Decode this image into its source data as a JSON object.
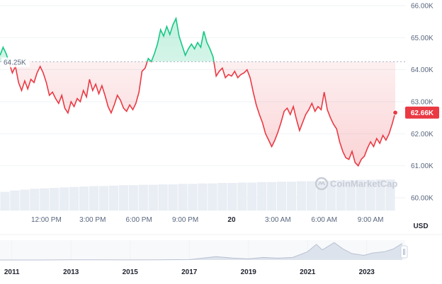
{
  "chart_data": {
    "type": "line",
    "unit": "USD",
    "watermark": "CoinMarketCap",
    "reference_price_label": "64.25K",
    "reference_price": 64.25,
    "current_price_label": "62.66K",
    "current_price": 62.66,
    "y_ticks": [
      "66.00K",
      "65.00K",
      "64.00K",
      "63.00K",
      "62.00K",
      "61.00K",
      "60.00K"
    ],
    "y_tick_values": [
      66,
      65,
      64,
      63,
      62,
      61,
      60
    ],
    "ylim": [
      60.0,
      66.0
    ],
    "x_ticks": [
      "12:00 PM",
      "3:00 PM",
      "6:00 PM",
      "9:00 PM",
      "20",
      "3:00 AM",
      "6:00 AM",
      "9:00 AM"
    ],
    "x_tick_hours": [
      12,
      15,
      18,
      21,
      24,
      27,
      30,
      33
    ],
    "x_bold_tick": "20",
    "price_series": [
      [
        9.0,
        64.45
      ],
      [
        9.2,
        64.7
      ],
      [
        9.4,
        64.5
      ],
      [
        9.6,
        64.2
      ],
      [
        9.8,
        63.9
      ],
      [
        10.0,
        64.1
      ],
      [
        10.2,
        63.6
      ],
      [
        10.4,
        63.35
      ],
      [
        10.6,
        63.65
      ],
      [
        10.8,
        63.4
      ],
      [
        11.0,
        63.7
      ],
      [
        11.2,
        63.6
      ],
      [
        11.4,
        63.9
      ],
      [
        11.6,
        64.1
      ],
      [
        11.8,
        63.9
      ],
      [
        12.0,
        63.6
      ],
      [
        12.2,
        63.2
      ],
      [
        12.4,
        63.3
      ],
      [
        12.6,
        63.1
      ],
      [
        12.8,
        62.95
      ],
      [
        13.0,
        63.2
      ],
      [
        13.2,
        62.8
      ],
      [
        13.4,
        62.65
      ],
      [
        13.6,
        63.0
      ],
      [
        13.8,
        62.85
      ],
      [
        14.0,
        63.1
      ],
      [
        14.2,
        63.0
      ],
      [
        14.4,
        63.35
      ],
      [
        14.6,
        63.15
      ],
      [
        14.8,
        63.7
      ],
      [
        15.0,
        63.35
      ],
      [
        15.2,
        63.55
      ],
      [
        15.4,
        63.25
      ],
      [
        15.6,
        63.5
      ],
      [
        15.8,
        63.2
      ],
      [
        16.0,
        62.85
      ],
      [
        16.2,
        62.65
      ],
      [
        16.4,
        62.9
      ],
      [
        16.6,
        63.2
      ],
      [
        16.8,
        63.05
      ],
      [
        17.0,
        62.8
      ],
      [
        17.2,
        62.7
      ],
      [
        17.4,
        62.9
      ],
      [
        17.6,
        62.75
      ],
      [
        17.8,
        62.95
      ],
      [
        18.0,
        63.3
      ],
      [
        18.2,
        63.95
      ],
      [
        18.4,
        64.05
      ],
      [
        18.6,
        64.35
      ],
      [
        18.8,
        64.25
      ],
      [
        19.0,
        64.5
      ],
      [
        19.2,
        64.8
      ],
      [
        19.4,
        65.25
      ],
      [
        19.6,
        65.05
      ],
      [
        19.8,
        65.35
      ],
      [
        20.0,
        65.1
      ],
      [
        20.2,
        65.4
      ],
      [
        20.4,
        65.6
      ],
      [
        20.6,
        65.05
      ],
      [
        20.8,
        64.75
      ],
      [
        21.0,
        64.45
      ],
      [
        21.2,
        64.65
      ],
      [
        21.4,
        64.8
      ],
      [
        21.6,
        64.65
      ],
      [
        21.8,
        64.85
      ],
      [
        22.0,
        64.7
      ],
      [
        22.2,
        65.2
      ],
      [
        22.4,
        64.85
      ],
      [
        22.6,
        64.65
      ],
      [
        22.8,
        64.4
      ],
      [
        23.0,
        63.8
      ],
      [
        23.2,
        63.95
      ],
      [
        23.4,
        64.05
      ],
      [
        23.6,
        63.75
      ],
      [
        23.8,
        63.85
      ],
      [
        24.0,
        63.8
      ],
      [
        24.2,
        63.95
      ],
      [
        24.4,
        63.75
      ],
      [
        24.6,
        63.85
      ],
      [
        24.8,
        63.9
      ],
      [
        25.0,
        64.0
      ],
      [
        25.2,
        63.75
      ],
      [
        25.4,
        63.3
      ],
      [
        25.6,
        62.9
      ],
      [
        25.8,
        62.6
      ],
      [
        26.0,
        62.35
      ],
      [
        26.2,
        62.0
      ],
      [
        26.4,
        61.8
      ],
      [
        26.6,
        61.6
      ],
      [
        26.8,
        61.8
      ],
      [
        27.0,
        62.05
      ],
      [
        27.2,
        62.35
      ],
      [
        27.4,
        62.7
      ],
      [
        27.6,
        62.8
      ],
      [
        27.8,
        62.6
      ],
      [
        28.0,
        62.85
      ],
      [
        28.2,
        62.45
      ],
      [
        28.4,
        62.1
      ],
      [
        28.6,
        62.35
      ],
      [
        28.8,
        62.6
      ],
      [
        29.0,
        62.75
      ],
      [
        29.2,
        62.95
      ],
      [
        29.4,
        62.7
      ],
      [
        29.6,
        62.85
      ],
      [
        29.8,
        62.75
      ],
      [
        30.0,
        63.3
      ],
      [
        30.2,
        62.75
      ],
      [
        30.4,
        62.5
      ],
      [
        30.6,
        62.3
      ],
      [
        30.8,
        62.15
      ],
      [
        31.0,
        61.75
      ],
      [
        31.2,
        61.45
      ],
      [
        31.4,
        61.25
      ],
      [
        31.6,
        61.2
      ],
      [
        31.8,
        61.45
      ],
      [
        32.0,
        61.1
      ],
      [
        32.2,
        61.0
      ],
      [
        32.4,
        61.2
      ],
      [
        32.6,
        61.3
      ],
      [
        32.8,
        61.55
      ],
      [
        33.0,
        61.75
      ],
      [
        33.2,
        61.6
      ],
      [
        33.4,
        61.85
      ],
      [
        33.6,
        61.7
      ],
      [
        33.8,
        61.95
      ],
      [
        34.0,
        61.8
      ],
      [
        34.2,
        62.0
      ],
      [
        34.4,
        62.3
      ],
      [
        34.6,
        62.66
      ]
    ],
    "volume_note": "relative volume bars, 0-1 scale",
    "volume_bars": [
      0.42,
      0.45,
      0.47,
      0.49,
      0.5,
      0.51,
      0.52,
      0.53,
      0.54,
      0.55,
      0.55,
      0.56,
      0.57,
      0.57,
      0.58,
      0.58,
      0.59,
      0.59,
      0.6,
      0.6,
      0.61,
      0.61,
      0.62,
      0.62,
      0.63,
      0.63,
      0.64,
      0.64,
      0.65,
      0.65,
      0.66,
      0.66,
      0.67,
      0.67,
      0.68,
      0.68,
      0.69,
      0.69,
      0.7,
      0.7
    ],
    "overview": {
      "x_ticks": [
        "2011",
        "2013",
        "2015",
        "2017",
        "2019",
        "2021",
        "2023"
      ],
      "x_tick_years": [
        2011,
        2013,
        2015,
        2017,
        2019,
        2021,
        2023
      ],
      "xlim": [
        2010.6,
        2024.3
      ],
      "series": [
        [
          2010.6,
          0.0
        ],
        [
          2012.0,
          0.0
        ],
        [
          2013.0,
          0.01
        ],
        [
          2014.0,
          0.01
        ],
        [
          2015.0,
          0.005
        ],
        [
          2016.0,
          0.01
        ],
        [
          2017.0,
          0.02
        ],
        [
          2017.9,
          0.18
        ],
        [
          2018.5,
          0.1
        ],
        [
          2019.0,
          0.06
        ],
        [
          2019.5,
          0.14
        ],
        [
          2020.0,
          0.1
        ],
        [
          2020.5,
          0.14
        ],
        [
          2021.0,
          0.45
        ],
        [
          2021.3,
          0.85
        ],
        [
          2021.5,
          0.55
        ],
        [
          2021.9,
          0.95
        ],
        [
          2022.2,
          0.6
        ],
        [
          2022.5,
          0.35
        ],
        [
          2022.9,
          0.25
        ],
        [
          2023.2,
          0.38
        ],
        [
          2023.6,
          0.45
        ],
        [
          2023.9,
          0.6
        ],
        [
          2024.2,
          0.9
        ]
      ]
    }
  }
}
